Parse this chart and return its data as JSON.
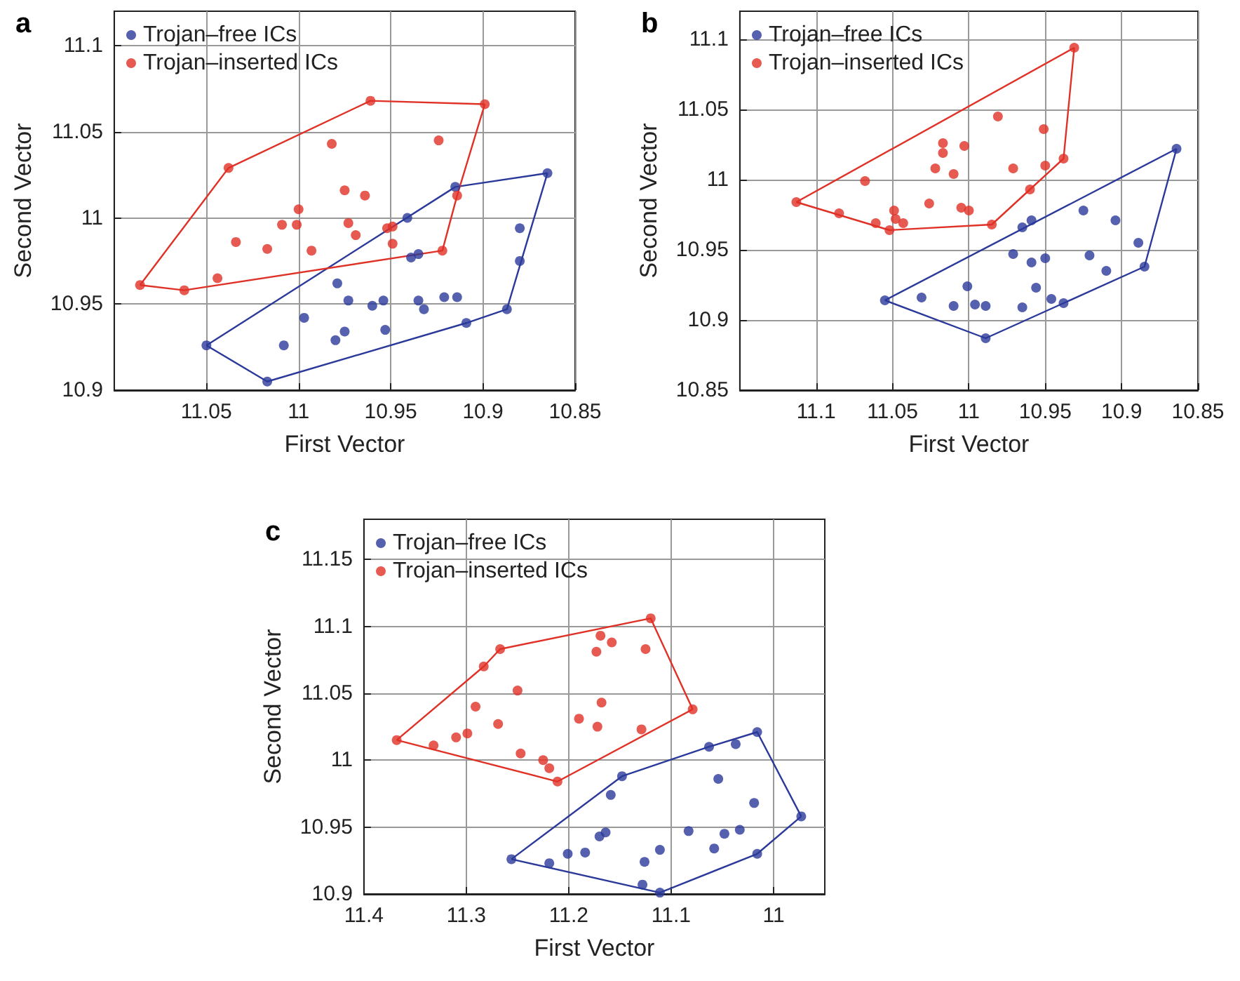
{
  "chart_data": [
    {
      "type": "scatter",
      "title": "a",
      "xlabel": "First Vector",
      "ylabel": "Second Vector",
      "xlim": [
        11.1,
        10.85
      ],
      "ylim": [
        10.9,
        11.12
      ],
      "xticks": [
        11.05,
        11,
        10.95,
        10.9,
        10.85
      ],
      "yticks": [
        10.9,
        10.95,
        11,
        11.05,
        11.1
      ],
      "grid": true,
      "legend": "top left",
      "marker": "circle",
      "series": [
        {
          "name": "Trojan–free ICs",
          "color": "#2b3a9a",
          "x": [
            11.05,
            11.017,
            11.008,
            10.997,
            10.98,
            10.979,
            10.975,
            10.973,
            10.96,
            10.954,
            10.953,
            10.941,
            10.939,
            10.935,
            10.935,
            10.932,
            10.921,
            10.915,
            10.914,
            10.909,
            10.887,
            10.88,
            10.88,
            10.865
          ],
          "values": [
            10.926,
            10.905,
            10.926,
            10.942,
            10.929,
            10.962,
            10.934,
            10.952,
            10.949,
            10.952,
            10.935,
            11.0,
            10.977,
            10.979,
            10.952,
            10.947,
            10.954,
            11.018,
            10.954,
            10.939,
            10.947,
            10.994,
            10.975,
            11.026
          ]
        },
        {
          "name": "Trojan–inserted ICs",
          "color": "#e03127",
          "x": [
            11.086,
            11.062,
            11.044,
            11.038,
            11.034,
            11.017,
            11.009,
            11.001,
            11.0,
            10.993,
            10.982,
            10.975,
            10.973,
            10.969,
            10.964,
            10.961,
            10.952,
            10.949,
            10.949,
            10.924,
            10.922,
            10.914,
            10.899
          ],
          "values": [
            10.961,
            10.958,
            10.965,
            11.029,
            10.986,
            10.982,
            10.996,
            10.996,
            11.005,
            10.981,
            11.043,
            11.016,
            10.997,
            10.99,
            11.013,
            11.068,
            10.994,
            10.995,
            10.985,
            11.045,
            10.981,
            11.013,
            11.066
          ]
        },
        {
          "type": "line",
          "marker": "none",
          "color": "#2b3a9a",
          "x": [
            11.05,
            11.017,
            10.909,
            10.887,
            10.865
          ],
          "values": [
            10.926,
            10.905,
            10.939,
            10.947,
            11.026
          ]
        },
        {
          "type": "line",
          "marker": "none",
          "color": "#2b3a9a",
          "x": [
            11.05,
            10.915,
            10.865
          ],
          "values": [
            10.926,
            11.018,
            11.026
          ]
        },
        {
          "type": "line",
          "marker": "none",
          "color": "#e03127",
          "x": [
            11.086,
            11.062,
            10.922,
            10.914,
            10.899
          ],
          "values": [
            10.961,
            10.958,
            10.981,
            11.013,
            11.066
          ]
        },
        {
          "type": "line",
          "marker": "none",
          "color": "#e03127",
          "x": [
            11.086,
            11.038,
            10.961,
            10.899
          ],
          "values": [
            10.961,
            11.029,
            11.068,
            11.066
          ]
        }
      ]
    },
    {
      "type": "scatter",
      "title": "b",
      "xlabel": "First Vector",
      "ylabel": "Second Vector",
      "xlim": [
        11.15,
        10.85
      ],
      "ylim": [
        10.85,
        11.12
      ],
      "xticks": [
        11.1,
        11.05,
        11,
        10.95,
        10.9,
        10.85
      ],
      "yticks": [
        10.85,
        10.9,
        10.95,
        11,
        11.05,
        11.1
      ],
      "grid": true,
      "legend": "top left",
      "marker": "circle",
      "series": [
        {
          "name": "Trojan–free ICs",
          "color": "#2b3a9a",
          "x": [
            11.055,
            11.031,
            11.01,
            11.001,
            10.996,
            10.989,
            10.989,
            10.971,
            10.965,
            10.965,
            10.959,
            10.959,
            10.956,
            10.95,
            10.946,
            10.938,
            10.925,
            10.921,
            10.91,
            10.904,
            10.889,
            10.885,
            10.864
          ],
          "values": [
            10.914,
            10.916,
            10.91,
            10.924,
            10.911,
            10.91,
            10.887,
            10.947,
            10.966,
            10.909,
            10.971,
            10.941,
            10.923,
            10.944,
            10.915,
            10.912,
            10.978,
            10.946,
            10.935,
            10.971,
            10.955,
            10.938,
            11.022
          ]
        },
        {
          "name": "Trojan–inserted ICs",
          "color": "#e03127",
          "x": [
            11.113,
            11.085,
            11.068,
            11.061,
            11.052,
            11.049,
            11.048,
            11.043,
            11.026,
            11.022,
            11.017,
            11.017,
            11.01,
            11.005,
            11.003,
            11.0,
            10.985,
            10.981,
            10.971,
            10.96,
            10.951,
            10.95,
            10.938,
            10.931
          ],
          "values": [
            10.984,
            10.976,
            10.999,
            10.969,
            10.964,
            10.978,
            10.972,
            10.969,
            10.983,
            11.008,
            11.026,
            11.019,
            11.004,
            10.98,
            11.024,
            10.978,
            10.968,
            11.045,
            11.008,
            10.993,
            11.036,
            11.01,
            11.015,
            11.094
          ]
        },
        {
          "type": "line",
          "marker": "none",
          "color": "#2b3a9a",
          "x": [
            11.055,
            10.989,
            10.938,
            10.885,
            10.864
          ],
          "values": [
            10.914,
            10.887,
            10.912,
            10.938,
            11.022
          ]
        },
        {
          "type": "line",
          "marker": "none",
          "color": "#2b3a9a",
          "x": [
            11.055,
            10.864
          ],
          "values": [
            10.914,
            11.022
          ]
        },
        {
          "type": "line",
          "marker": "none",
          "color": "#e03127",
          "x": [
            11.113,
            11.052,
            10.985,
            10.96,
            10.938,
            10.931
          ],
          "values": [
            10.984,
            10.964,
            10.968,
            10.993,
            11.015,
            11.094
          ]
        },
        {
          "type": "line",
          "marker": "none",
          "color": "#e03127",
          "x": [
            11.113,
            10.931
          ],
          "values": [
            10.984,
            11.094
          ]
        }
      ]
    },
    {
      "type": "scatter",
      "title": "c",
      "xlabel": "First Vector",
      "ylabel": "Second Vector",
      "xlim": [
        11.4,
        10.95
      ],
      "ylim": [
        10.9,
        11.18
      ],
      "xticks": [
        11.4,
        11.3,
        11.2,
        11.1,
        11
      ],
      "yticks": [
        10.9,
        10.95,
        11,
        11.05,
        11.1,
        11.15
      ],
      "grid": true,
      "legend": "top left",
      "marker": "circle",
      "series": [
        {
          "name": "Trojan–free ICs",
          "color": "#2b3a9a",
          "x": [
            11.256,
            11.219,
            11.201,
            11.184,
            11.17,
            11.164,
            11.159,
            11.148,
            11.128,
            11.126,
            11.111,
            11.111,
            11.083,
            11.063,
            11.058,
            11.054,
            11.048,
            11.033,
            11.037,
            11.019,
            11.016,
            11.016,
            10.973
          ],
          "values": [
            10.926,
            10.923,
            10.93,
            10.931,
            10.943,
            10.946,
            10.974,
            10.988,
            10.907,
            10.924,
            10.933,
            10.901,
            10.947,
            11.01,
            10.934,
            10.986,
            10.945,
            10.948,
            11.012,
            10.968,
            10.93,
            11.021,
            10.958
          ]
        },
        {
          "name": "Trojan–inserted ICs",
          "color": "#e03127",
          "x": [
            11.368,
            11.332,
            11.31,
            11.299,
            11.291,
            11.283,
            11.269,
            11.267,
            11.25,
            11.247,
            11.225,
            11.219,
            11.211,
            11.19,
            11.173,
            11.172,
            11.169,
            11.168,
            11.158,
            11.129,
            11.125,
            11.12,
            11.079
          ],
          "values": [
            11.015,
            11.011,
            11.017,
            11.02,
            11.04,
            11.07,
            11.027,
            11.083,
            11.052,
            11.005,
            11.0,
            10.994,
            10.984,
            11.031,
            11.081,
            11.025,
            11.093,
            11.043,
            11.088,
            11.023,
            11.083,
            11.106,
            11.038
          ]
        },
        {
          "type": "line",
          "marker": "none",
          "color": "#2b3a9a",
          "x": [
            11.256,
            11.111,
            11.016,
            10.973
          ],
          "values": [
            10.926,
            10.901,
            10.93,
            10.958
          ]
        },
        {
          "type": "line",
          "marker": "none",
          "color": "#2b3a9a",
          "x": [
            11.256,
            11.148,
            11.063,
            11.016,
            10.973
          ],
          "values": [
            10.926,
            10.988,
            11.01,
            11.021,
            10.958
          ]
        },
        {
          "type": "line",
          "marker": "none",
          "color": "#e03127",
          "x": [
            11.368,
            11.211,
            11.079
          ],
          "values": [
            11.015,
            10.984,
            11.038
          ]
        },
        {
          "type": "line",
          "marker": "none",
          "color": "#e03127",
          "x": [
            11.368,
            11.283,
            11.267,
            11.12,
            11.079
          ],
          "values": [
            11.015,
            11.07,
            11.083,
            11.106,
            11.038
          ]
        }
      ]
    }
  ]
}
